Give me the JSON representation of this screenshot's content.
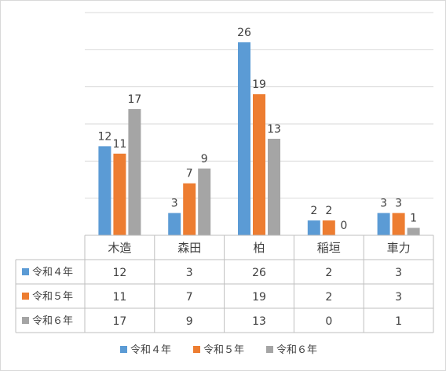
{
  "chart_data": {
    "type": "bar",
    "categories": [
      "木造",
      "森田",
      "柏",
      "稲垣",
      "車力"
    ],
    "series": [
      {
        "name": "令和４年",
        "color": "#5b9bd5",
        "values": [
          12,
          3,
          26,
          2,
          3
        ]
      },
      {
        "name": "令和５年",
        "color": "#ed7d31",
        "values": [
          11,
          7,
          19,
          2,
          3
        ]
      },
      {
        "name": "令和６年",
        "color": "#a5a5a5",
        "values": [
          17,
          9,
          13,
          0,
          1
        ]
      }
    ],
    "ylim": [
      0,
      30
    ],
    "grid": true,
    "data_table": true,
    "legend": "bottom"
  }
}
